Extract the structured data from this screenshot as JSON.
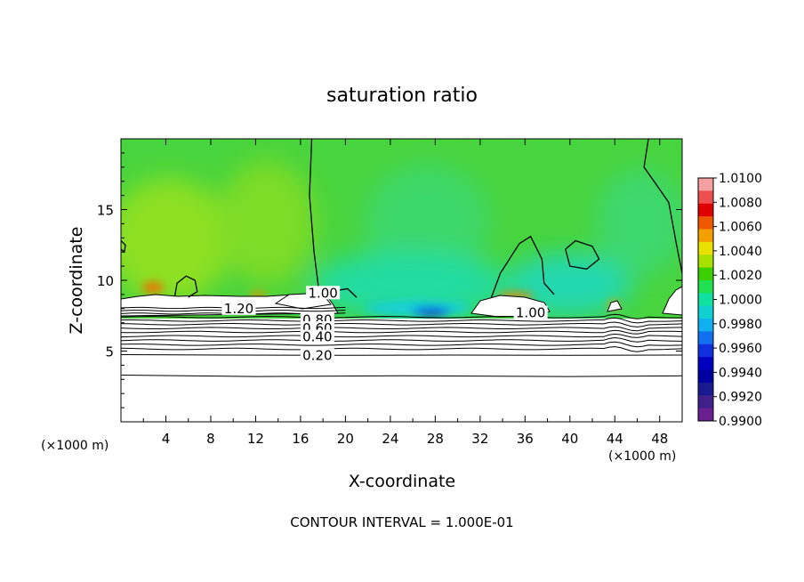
{
  "chart_data": {
    "type": "heatmap",
    "title": "saturation ratio",
    "xlabel": "X-coordinate",
    "ylabel": "Z-coordinate",
    "x_unit_left": "(×1000 m)",
    "x_unit_right": "(×1000 m)",
    "xlim": [
      0,
      50
    ],
    "ylim": [
      0,
      20
    ],
    "x_ticks": [
      4,
      8,
      12,
      16,
      20,
      24,
      28,
      32,
      36,
      40,
      44,
      48
    ],
    "y_ticks": [
      5,
      10,
      15
    ],
    "footer": "CONTOUR INTERVAL = 1.000E-01",
    "colorbar": {
      "ticks": [
        "1.0100",
        "1.0080",
        "1.0060",
        "1.0040",
        "1.0020",
        "1.0000",
        "0.9980",
        "0.9960",
        "0.9940",
        "0.9920",
        "0.9900"
      ],
      "colors": [
        "#f5a0a0",
        "#ee5050",
        "#e00000",
        "#f05800",
        "#f4a000",
        "#e8e000",
        "#a8e000",
        "#3cd000",
        "#20e050",
        "#10e0a0",
        "#10d0d0",
        "#10b0f0",
        "#1070f0",
        "#1030e0",
        "#0000c0",
        "#0000a0",
        "#1a1a90",
        "#40208a",
        "#6a2090"
      ]
    },
    "contour_labels": [
      {
        "text": "1.00",
        "x": 18.0,
        "y": 9.1
      },
      {
        "text": "1.20",
        "x": 10.5,
        "y": 8.0
      },
      {
        "text": "0.80",
        "x": 17.5,
        "y": 7.2
      },
      {
        "text": "0.60",
        "x": 17.5,
        "y": 6.6
      },
      {
        "text": "0.40",
        "x": 17.5,
        "y": 6.0
      },
      {
        "text": "0.20",
        "x": 17.5,
        "y": 4.7
      },
      {
        "text": "1.00",
        "x": 36.5,
        "y": 7.7
      }
    ],
    "cloud_contours_1": [
      [
        [
          0.0,
          12.8
        ],
        [
          0.4,
          12.5
        ],
        [
          0.3,
          12.0
        ],
        [
          0.0,
          12.2
        ]
      ],
      [
        [
          4.8,
          8.9
        ],
        [
          5.0,
          9.8
        ],
        [
          5.8,
          10.3
        ],
        [
          6.6,
          10.0
        ],
        [
          6.8,
          9.2
        ],
        [
          6.0,
          8.8
        ]
      ],
      [
        [
          17.0,
          20.0
        ],
        [
          16.8,
          16.0
        ],
        [
          17.2,
          12.0
        ],
        [
          17.6,
          9.5
        ],
        [
          18.5,
          9.2
        ],
        [
          20.2,
          9.4
        ],
        [
          21.0,
          8.8
        ]
      ],
      [
        [
          33.0,
          8.8
        ],
        [
          33.8,
          10.5
        ],
        [
          35.5,
          12.6
        ],
        [
          36.5,
          13.1
        ],
        [
          37.5,
          11.5
        ],
        [
          37.7,
          9.8
        ],
        [
          38.6,
          9.0
        ]
      ],
      [
        [
          39.6,
          12.2
        ],
        [
          40.5,
          12.8
        ],
        [
          42.0,
          12.4
        ],
        [
          42.6,
          11.5
        ],
        [
          41.5,
          10.8
        ],
        [
          40.0,
          11.0
        ],
        [
          39.6,
          12.2
        ]
      ],
      [
        [
          47.0,
          20.0
        ],
        [
          46.6,
          18.0
        ],
        [
          47.5,
          17.0
        ],
        [
          48.8,
          15.5
        ],
        [
          49.5,
          12.5
        ],
        [
          50.0,
          10.5
        ]
      ]
    ],
    "low_contours": [
      {
        "level": 0.2,
        "points": [
          [
            0,
            4.75
          ],
          [
            10,
            4.72
          ],
          [
            20,
            4.7
          ],
          [
            30,
            4.72
          ],
          [
            40,
            4.7
          ],
          [
            50,
            4.72
          ]
        ]
      },
      {
        "level": 0.1,
        "points": [
          [
            0,
            3.3
          ],
          [
            12,
            3.2
          ],
          [
            25,
            3.25
          ],
          [
            40,
            3.2
          ],
          [
            50,
            3.25
          ]
        ]
      }
    ]
  }
}
